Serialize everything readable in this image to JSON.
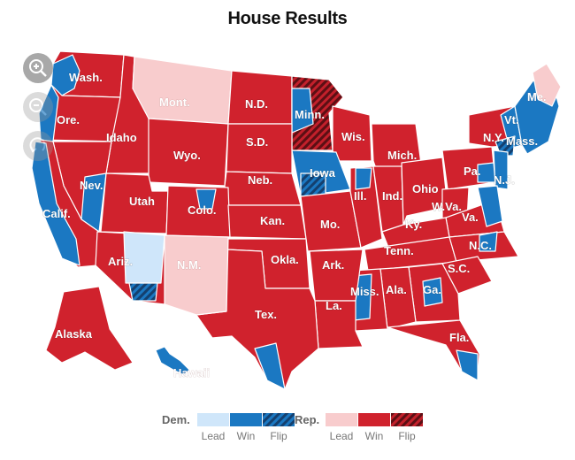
{
  "title": "House Results",
  "colors": {
    "dem_lead": "#cfe6fa",
    "dem_win": "#1b78c2",
    "dem_flip": "#1b4f8c",
    "rep_lead": "#f8cccd",
    "rep_win": "#d0222d",
    "rep_flip": "#8e1b22",
    "border": "#ffffff"
  },
  "zoom_controls": [
    "zoom-in-icon",
    "zoom-out-icon",
    "reset-icon"
  ],
  "states": [
    {
      "name": "Wash.",
      "result": "rep_win"
    },
    {
      "name": "Ore.",
      "result": "rep_win"
    },
    {
      "name": "Idaho",
      "result": "rep_win"
    },
    {
      "name": "Mont.",
      "result": "rep_lead"
    },
    {
      "name": "N.D.",
      "result": "rep_win"
    },
    {
      "name": "Minn.",
      "result": "rep_flip"
    },
    {
      "name": "Me.",
      "result": "rep_lead"
    },
    {
      "name": "Vt.",
      "result": "dem_win"
    },
    {
      "name": "N.Y.",
      "result": "rep_win"
    },
    {
      "name": "Mass.",
      "result": "dem_win"
    },
    {
      "name": "Wis.",
      "result": "rep_win"
    },
    {
      "name": "Mich.",
      "result": "rep_win"
    },
    {
      "name": "Wyo.",
      "result": "rep_win"
    },
    {
      "name": "S.D.",
      "result": "rep_win"
    },
    {
      "name": "Nev.",
      "result": "rep_win"
    },
    {
      "name": "Iowa",
      "result": "dem_win"
    },
    {
      "name": "Pa.",
      "result": "rep_win"
    },
    {
      "name": "N.J.",
      "result": "dem_win"
    },
    {
      "name": "Neb.",
      "result": "rep_win"
    },
    {
      "name": "Ohio",
      "result": "rep_win"
    },
    {
      "name": "Ind.",
      "result": "rep_win"
    },
    {
      "name": "Ill.",
      "result": "rep_win"
    },
    {
      "name": "Utah",
      "result": "rep_win"
    },
    {
      "name": "Colo.",
      "result": "rep_win"
    },
    {
      "name": "W.Va.",
      "result": "rep_win"
    },
    {
      "name": "Calif.",
      "result": "dem_win"
    },
    {
      "name": "Kan.",
      "result": "rep_win"
    },
    {
      "name": "Mo.",
      "result": "rep_win"
    },
    {
      "name": "Ky.",
      "result": "rep_win"
    },
    {
      "name": "Va.",
      "result": "rep_win"
    },
    {
      "name": "N.C.",
      "result": "rep_win"
    },
    {
      "name": "Tenn.",
      "result": "rep_win"
    },
    {
      "name": "Ariz.",
      "result": "rep_win"
    },
    {
      "name": "N.M.",
      "result": "rep_lead"
    },
    {
      "name": "Okla.",
      "result": "rep_win"
    },
    {
      "name": "Ark.",
      "result": "rep_win"
    },
    {
      "name": "S.C.",
      "result": "rep_win"
    },
    {
      "name": "Miss.",
      "result": "rep_win"
    },
    {
      "name": "Ala.",
      "result": "rep_win"
    },
    {
      "name": "Ga.",
      "result": "rep_win"
    },
    {
      "name": "La.",
      "result": "rep_win"
    },
    {
      "name": "Tex.",
      "result": "rep_win"
    },
    {
      "name": "Fla.",
      "result": "rep_win"
    },
    {
      "name": "Alaska",
      "result": "rep_win"
    },
    {
      "name": "Hawaii",
      "result": "dem_win"
    }
  ],
  "legend": {
    "dem_label": "Dem.",
    "rep_label": "Rep.",
    "lead": "Lead",
    "win": "Win",
    "flip": "Flip"
  }
}
